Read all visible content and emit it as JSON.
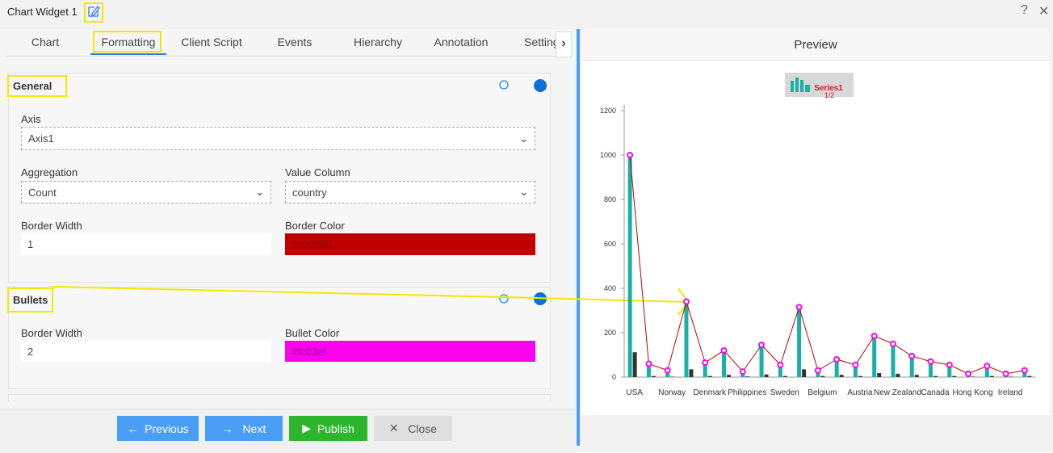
{
  "header": {
    "title": "Chart Widget 1"
  },
  "tabs": [
    "Chart",
    "Formatting",
    "Client Script",
    "Events",
    "Hierarchy",
    "Annotation",
    "Setting"
  ],
  "sections": [
    {
      "title": "General",
      "fields": [
        {
          "label": "Axis",
          "value": "Axis1"
        },
        {
          "label": "Aggregation",
          "value": "Count"
        },
        {
          "label": "Value Column",
          "value": "country"
        },
        {
          "label": "Border Width",
          "value": "1"
        },
        {
          "label": "Border Color",
          "value": "#c00000"
        }
      ]
    },
    {
      "title": "Bullets",
      "fields": [
        {
          "label": "Border Width",
          "value": "2"
        },
        {
          "label": "Bullet Color",
          "value": "#fc03ef"
        }
      ]
    }
  ],
  "buttons": [
    "Previous",
    "Next",
    "Publish",
    "Close"
  ],
  "preview_title": "Preview",
  "chart_data": {
    "type": "bar",
    "categories": [
      "USA",
      null,
      "Norway",
      null,
      "Denmark",
      null,
      "Philippines",
      null,
      "Sweden",
      null,
      "Belgium",
      null,
      "Austria",
      null,
      "New Zealand",
      null,
      "Canada",
      null,
      "Hong Kong",
      null,
      "Ireland",
      null
    ],
    "series": [
      {
        "name": "Series1",
        "color": "#1ab0a6",
        "values": [
          1000,
          60,
          30,
          340,
          65,
          120,
          25,
          145,
          55,
          315,
          30,
          80,
          55,
          185,
          150,
          95,
          70,
          55,
          15,
          50,
          15,
          30
        ]
      },
      {
        "color": "#333333",
        "values": [
          112,
          5,
          2,
          35,
          5,
          10,
          3,
          12,
          5,
          35,
          5,
          10,
          5,
          18,
          15,
          10,
          5,
          5,
          2,
          5,
          2,
          5
        ]
      },
      {
        "type": "line",
        "color": "#c00000",
        "marker_color": "#fc03ef",
        "values": [
          1000,
          60,
          30,
          340,
          65,
          120,
          25,
          145,
          55,
          315,
          30,
          80,
          55,
          185,
          150,
          95,
          70,
          55,
          15,
          50,
          15,
          30
        ]
      }
    ],
    "legend_page": "1/2",
    "ylim": [
      0,
      1200
    ],
    "yticks": [
      0,
      200,
      400,
      600,
      800,
      1000,
      1200
    ]
  }
}
